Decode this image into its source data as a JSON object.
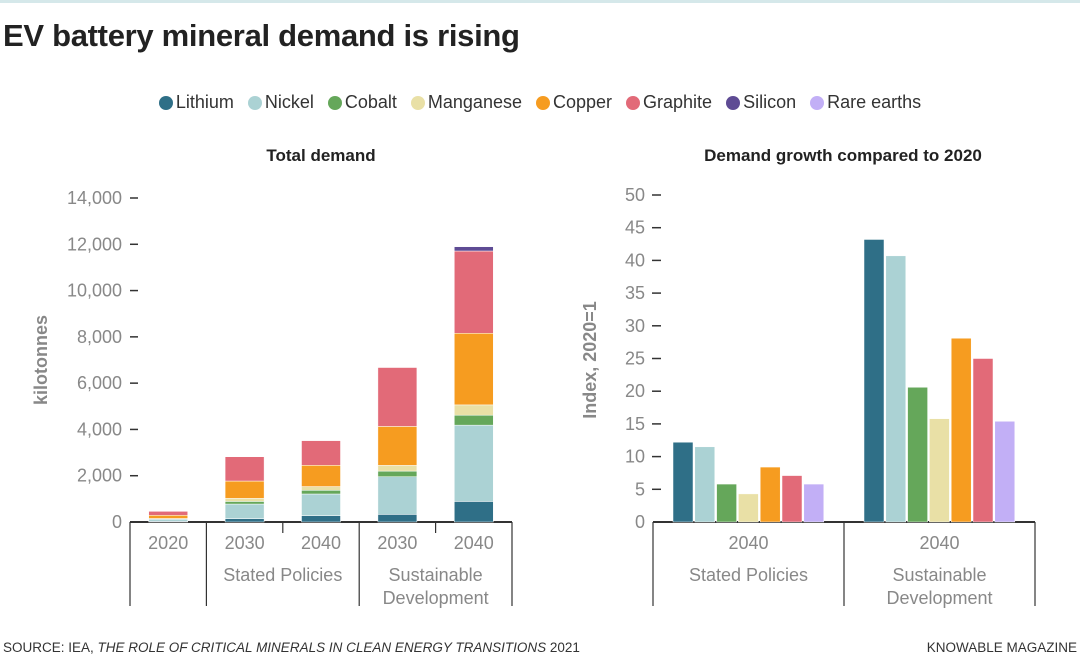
{
  "title": "EV battery mineral demand is rising",
  "legend": [
    {
      "name": "Lithium",
      "color": "#2f6f87"
    },
    {
      "name": "Nickel",
      "color": "#abd2d4"
    },
    {
      "name": "Cobalt",
      "color": "#65a75a"
    },
    {
      "name": "Manganese",
      "color": "#e9e0a6"
    },
    {
      "name": "Copper",
      "color": "#f69c20"
    },
    {
      "name": "Graphite",
      "color": "#e26a78"
    },
    {
      "name": "Silicon",
      "color": "#5e4b94"
    },
    {
      "name": "Rare earths",
      "color": "#c2aff6"
    }
  ],
  "chart_data": [
    {
      "type": "bar",
      "stacked": true,
      "title": "Total demand",
      "ylabel": "kilotonnes",
      "ylim": [
        0,
        14000
      ],
      "yticks": [
        "0",
        "2,000",
        "4,000",
        "6,000",
        "8,000",
        "10,000",
        "12,000",
        "14,000"
      ],
      "categories": [
        "2020",
        "2030",
        "2040",
        "2030",
        "2040"
      ],
      "groups": [
        {
          "label": "",
          "span": [
            0,
            0
          ]
        },
        {
          "label": "Stated Policies",
          "span": [
            1,
            2
          ]
        },
        {
          "label": "Sustainable Development",
          "span": [
            3,
            4
          ]
        }
      ],
      "series": [
        {
          "name": "Lithium",
          "values": [
            30,
            145,
            275,
            330,
            890
          ]
        },
        {
          "name": "Nickel",
          "values": [
            90,
            630,
            935,
            1625,
            3295
          ]
        },
        {
          "name": "Cobalt",
          "values": [
            20,
            115,
            160,
            245,
            430
          ]
        },
        {
          "name": "Manganese",
          "values": [
            10,
            130,
            160,
            245,
            445
          ]
        },
        {
          "name": "Copper",
          "values": [
            140,
            750,
            920,
            1685,
            3095
          ]
        },
        {
          "name": "Graphite",
          "values": [
            170,
            1050,
            1065,
            2545,
            3555
          ]
        },
        {
          "name": "Silicon",
          "values": [
            0,
            0,
            0,
            0,
            185
          ]
        }
      ]
    },
    {
      "type": "bar",
      "title": "Demand growth compared to 2020",
      "ylabel": "Index, 2020=1",
      "ylim": [
        0,
        50
      ],
      "yticks": [
        "0",
        "5",
        "10",
        "15",
        "20",
        "25",
        "30",
        "35",
        "40",
        "45",
        "50"
      ],
      "categories": [
        "2040",
        "2040"
      ],
      "groups": [
        "Stated Policies",
        "Sustainable Development"
      ],
      "series": [
        {
          "name": "Lithium",
          "values": [
            12.2,
            43.2
          ]
        },
        {
          "name": "Nickel",
          "values": [
            11.5,
            40.7
          ]
        },
        {
          "name": "Cobalt",
          "values": [
            5.8,
            20.6
          ]
        },
        {
          "name": "Manganese",
          "values": [
            4.3,
            15.8
          ]
        },
        {
          "name": "Copper",
          "values": [
            8.4,
            28.1
          ]
        },
        {
          "name": "Graphite",
          "values": [
            7.1,
            25.0
          ]
        },
        {
          "name": "Rare earths",
          "values": [
            5.8,
            15.4
          ]
        }
      ]
    }
  ],
  "footer": {
    "source_prefix": "SOURCE: IEA, ",
    "source_title": "THE ROLE OF CRITICAL MINERALS IN CLEAN ENERGY TRANSITIONS",
    "source_year": " 2021",
    "credit": "KNOWABLE MAGAZINE"
  }
}
